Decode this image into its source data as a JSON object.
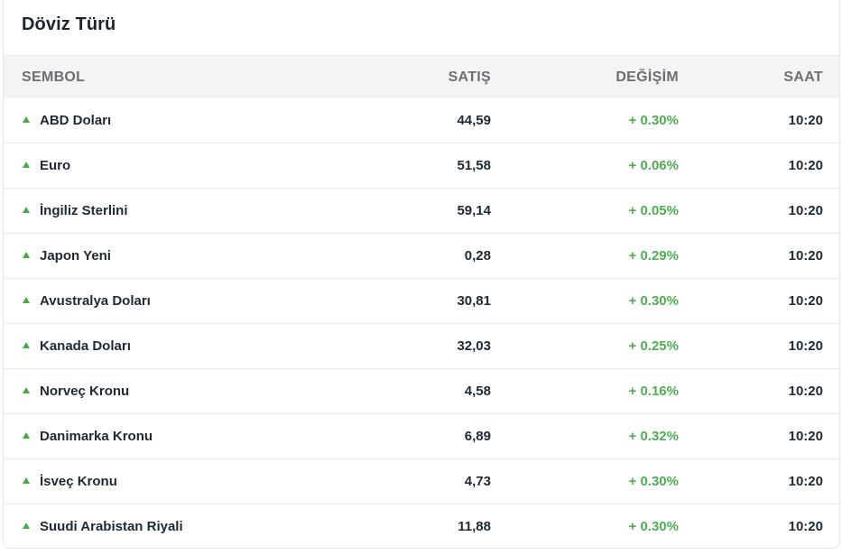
{
  "title": "Döviz Türü",
  "columns": {
    "symbol": "SEMBOL",
    "sell": "SATIŞ",
    "change": "DEĞİŞİM",
    "time": "SAAT"
  },
  "colors": {
    "up": "#4caf50",
    "header_bg": "#f4f4f4"
  },
  "rows": [
    {
      "name": "ABD Doları",
      "sell": "44,59",
      "change": "+ 0.30%",
      "time": "10:20",
      "trend_icon": "up-triangle-icon"
    },
    {
      "name": "Euro",
      "sell": "51,58",
      "change": "+ 0.06%",
      "time": "10:20",
      "trend_icon": "up-triangle-icon"
    },
    {
      "name": "İngiliz Sterlini",
      "sell": "59,14",
      "change": "+ 0.05%",
      "time": "10:20",
      "trend_icon": "up-triangle-icon"
    },
    {
      "name": "Japon Yeni",
      "sell": "0,28",
      "change": "+ 0.29%",
      "time": "10:20",
      "trend_icon": "up-triangle-icon"
    },
    {
      "name": "Avustralya Doları",
      "sell": "30,81",
      "change": "+ 0.30%",
      "time": "10:20",
      "trend_icon": "up-triangle-icon"
    },
    {
      "name": "Kanada Doları",
      "sell": "32,03",
      "change": "+ 0.25%",
      "time": "10:20",
      "trend_icon": "up-triangle-icon"
    },
    {
      "name": "Norveç Kronu",
      "sell": "4,58",
      "change": "+ 0.16%",
      "time": "10:20",
      "trend_icon": "up-triangle-icon"
    },
    {
      "name": "Danimarka Kronu",
      "sell": "6,89",
      "change": "+ 0.32%",
      "time": "10:20",
      "trend_icon": "up-triangle-icon"
    },
    {
      "name": "İsveç Kronu",
      "sell": "4,73",
      "change": "+ 0.30%",
      "time": "10:20",
      "trend_icon": "up-triangle-icon"
    },
    {
      "name": "Suudi Arabistan Riyali",
      "sell": "11,88",
      "change": "+ 0.30%",
      "time": "10:20",
      "trend_icon": "up-triangle-icon"
    }
  ]
}
